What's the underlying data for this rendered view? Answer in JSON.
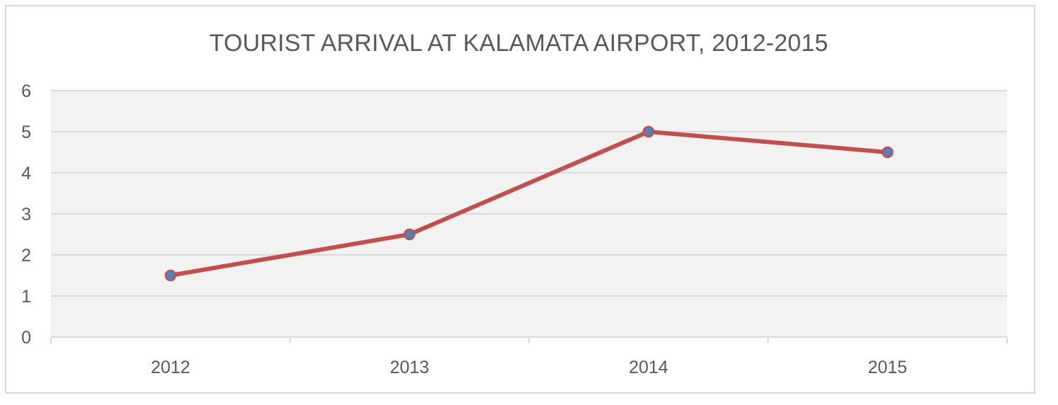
{
  "chart_data": {
    "type": "line",
    "title": "TOURIST ARRIVAL AT KALAMATA AIRPORT, 2012-2015",
    "categories": [
      "2012",
      "2013",
      "2014",
      "2015"
    ],
    "series": [
      {
        "values": [
          1.5,
          2.5,
          5,
          4.5
        ],
        "line_color": "#c0504d",
        "marker_color": "#4f81bd"
      }
    ],
    "ylim": [
      0,
      6
    ],
    "yticks": [
      "0",
      "1",
      "2",
      "3",
      "4",
      "5",
      "6"
    ],
    "grid": true,
    "plot_background": "#f2f2f2",
    "legend": "none"
  }
}
